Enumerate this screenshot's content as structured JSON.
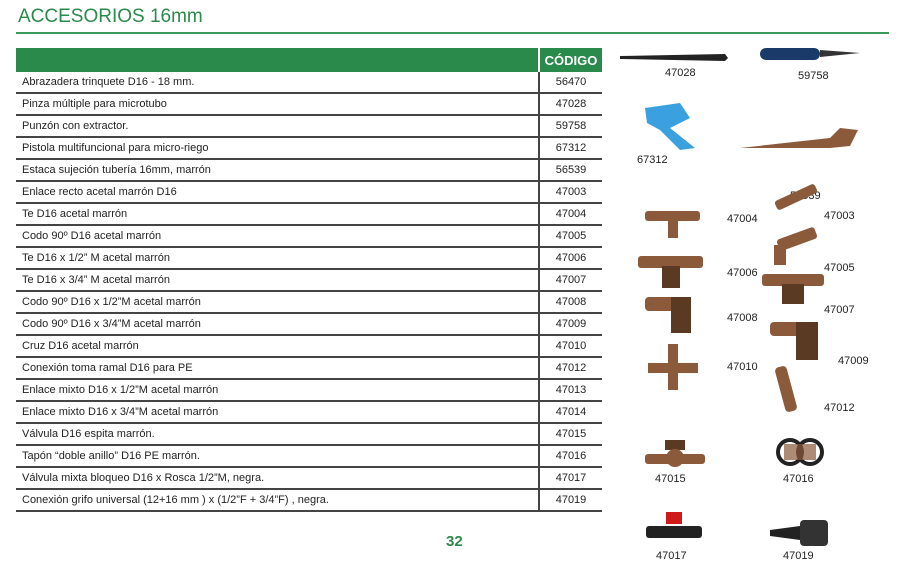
{
  "title": "ACCESORIOS 16mm",
  "table": {
    "headers": {
      "description": "",
      "code": "CÓDIGO"
    },
    "rows": [
      {
        "description": "Abrazadera trinquete D16 - 18 mm.",
        "code": "56470"
      },
      {
        "description": "Pinza múltiple para microtubo",
        "code": "47028"
      },
      {
        "description": "Punzón con extractor.",
        "code": "59758"
      },
      {
        "description": "Pistola multifuncional para micro-riego",
        "code": "67312"
      },
      {
        "description": "Estaca sujeción tubería 16mm, marrón",
        "code": "56539"
      },
      {
        "description": "Enlace recto acetal marrón D16",
        "code": "47003"
      },
      {
        "description": "Te D16 acetal marrón",
        "code": "47004"
      },
      {
        "description": "Codo 90º D16 acetal marrón",
        "code": "47005"
      },
      {
        "description": "Te D16 x 1/2” M acetal marrón",
        "code": "47006"
      },
      {
        "description": "Te D16 x 3/4” M   acetal marrón",
        "code": "47007"
      },
      {
        "description": "Codo 90º D16 x 1/2”M acetal marrón",
        "code": "47008"
      },
      {
        "description": "Codo 90º D16 x 3/4”M acetal marrón",
        "code": "47009"
      },
      {
        "description": "Cruz D16 acetal marrón",
        "code": "47010"
      },
      {
        "description": "Conexión toma ramal D16 para PE",
        "code": "47012"
      },
      {
        "description": "Enlace mixto D16 x 1/2”M acetal marrón",
        "code": "47013"
      },
      {
        "description": "Enlace mixto D16 x 3/4”M acetal marrón",
        "code": "47014"
      },
      {
        "description": "Válvula D16  espita marrón.",
        "code": "47015"
      },
      {
        "description": "Tapón “doble anillo” D16 PE marrón.",
        "code": "47016"
      },
      {
        "description": "Válvula mixta bloqueo D16 x Rosca 1/2”M, negra.",
        "code": "47017"
      },
      {
        "description": "Conexión grifo universal (12+16 mm ) x (1/2”F + 3/4”F) , negra.",
        "code": "47019"
      }
    ]
  },
  "products": [
    "47028",
    "59758",
    "67312",
    "56539",
    "47004",
    "47003",
    "47006",
    "47005",
    "47008",
    "47007",
    "47010",
    "47009",
    "47012",
    "47015",
    "47016",
    "47017",
    "47019"
  ],
  "page_number": "32",
  "colors": {
    "accent": "#2a8a4c",
    "fitting": "#8a5a3a"
  }
}
